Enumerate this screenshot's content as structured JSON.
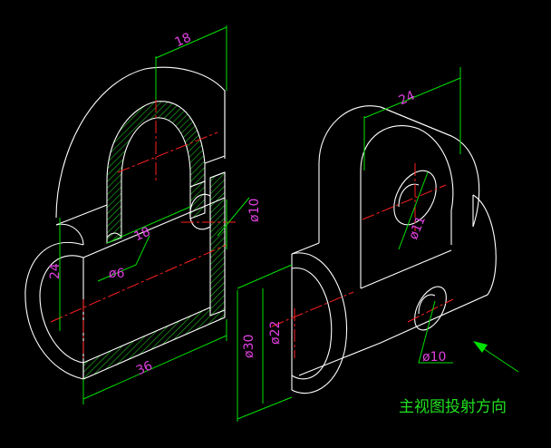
{
  "colors": {
    "background": "#000000",
    "object_lines": "#ffffff",
    "centerlines": "#ff2020",
    "dimension_lines": "#00e000",
    "dimension_text": "#e040e0",
    "hatch": "#20c020",
    "caption": "#20e020"
  },
  "dimensions": {
    "d18_top": "18",
    "d18_inner": "18",
    "d24_left": "24",
    "d36": "36",
    "d6": "ø6",
    "d10_left": "ø10",
    "d24_right": "24",
    "d11": "ø11",
    "d30": "ø30",
    "d22": "ø22",
    "d10_right": "ø10"
  },
  "caption": "主视图投射方向"
}
